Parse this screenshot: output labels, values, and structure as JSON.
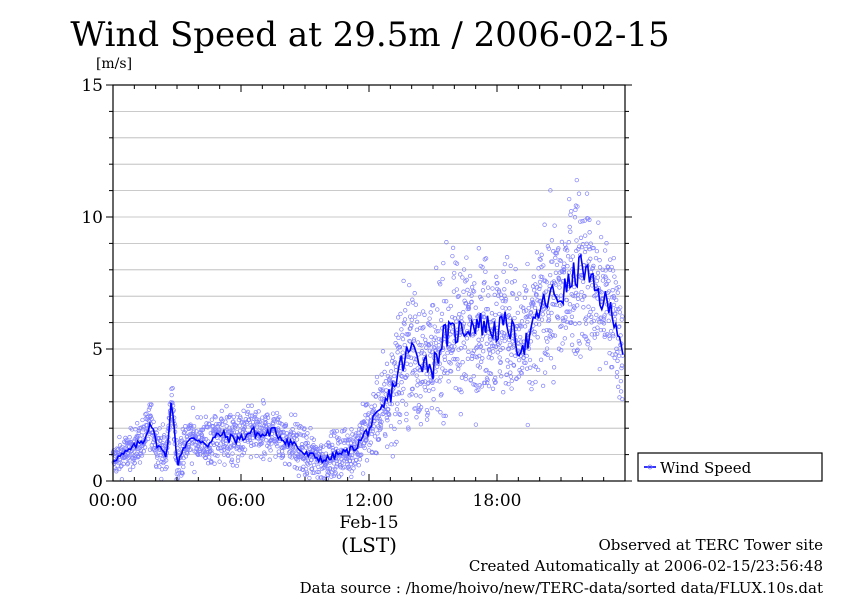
{
  "chart_data": {
    "type": "scatter",
    "title": "Wind Speed at 29.5m / 2006-02-15",
    "ylabel": "[m/s]",
    "ylim": [
      0,
      15
    ],
    "xlim": [
      "00:00",
      "24:00"
    ],
    "y_ticks": [
      "0",
      "5",
      "10",
      "15"
    ],
    "x_ticks": [
      "00:00",
      "06:00",
      "12:00",
      "18:00"
    ],
    "x_date_label": "Feb-15",
    "x_axis_label": "(LST)",
    "grid": true,
    "legend": {
      "position": "right",
      "entries": [
        "Wind Speed"
      ]
    },
    "series_color": "#0000ff",
    "scatter_color": "#8080ff",
    "series": [
      {
        "name": "Wind Speed",
        "x_hours": [
          0,
          0.5,
          1,
          1.5,
          1.75,
          2,
          2.5,
          2.75,
          3,
          3.25,
          3.5,
          4,
          4.5,
          5,
          5.5,
          6,
          6.5,
          7,
          7.5,
          8,
          8.5,
          9,
          9.5,
          10,
          10.5,
          11,
          11.5,
          12,
          12.5,
          13,
          13.25,
          13.5,
          14,
          14.5,
          15,
          15.5,
          16,
          16.5,
          17,
          17.5,
          18,
          18.5,
          19,
          19.5,
          20,
          20.5,
          21,
          21.5,
          22,
          22.5,
          23,
          23.5,
          23.9
        ],
        "mean": [
          0.8,
          1.0,
          1.3,
          1.6,
          2.3,
          1.5,
          0.9,
          3.2,
          0.6,
          1.2,
          1.5,
          1.6,
          1.4,
          1.8,
          1.6,
          1.6,
          1.9,
          1.7,
          1.9,
          1.6,
          1.4,
          1.0,
          0.9,
          0.8,
          1.0,
          1.1,
          1.4,
          2.0,
          2.5,
          3.3,
          3.8,
          4.4,
          5.0,
          4.6,
          4.3,
          5.5,
          5.6,
          5.8,
          6.0,
          5.9,
          5.7,
          6.0,
          5.1,
          5.3,
          6.5,
          7.0,
          7.0,
          7.6,
          8.2,
          7.3,
          6.8,
          6.3,
          5.0
        ],
        "spread": [
          0.4,
          0.5,
          0.5,
          0.6,
          0.6,
          0.6,
          0.6,
          0.5,
          0.6,
          0.6,
          0.6,
          0.7,
          0.7,
          0.7,
          0.7,
          0.7,
          0.7,
          0.7,
          0.7,
          0.7,
          0.7,
          0.6,
          0.6,
          0.6,
          0.6,
          0.6,
          0.7,
          0.9,
          1.1,
          1.4,
          1.6,
          1.8,
          2.0,
          1.8,
          1.6,
          1.8,
          1.8,
          1.8,
          1.8,
          1.8,
          1.8,
          1.8,
          1.7,
          1.7,
          1.8,
          1.9,
          2.0,
          2.1,
          2.1,
          2.0,
          1.9,
          1.8,
          1.5
        ]
      }
    ]
  },
  "footer": {
    "observed": "Observed at TERC Tower site",
    "created": "Created Automatically at 2006-02-15/23:56:48",
    "source": "Data source : /home/hoivo/new/TERC-data/sorted  data/FLUX.10s.dat"
  }
}
